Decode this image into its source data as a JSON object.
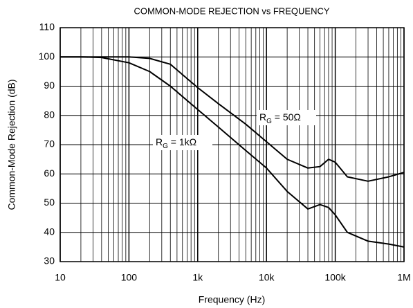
{
  "chart_data": {
    "type": "line",
    "title": "COMMON-MODE REJECTION vs FREQUENCY",
    "xlabel": "Frequency (Hz)",
    "ylabel": "Common-Mode Rejection (dB)",
    "xscale": "log",
    "xlim": [
      10,
      1000000
    ],
    "xticks": [
      10,
      100,
      {
        "value": 1000,
        "label": "1k"
      },
      {
        "value": 10000,
        "label": "10k"
      },
      {
        "value": 100000,
        "label": "100k"
      },
      {
        "value": 1000000,
        "label": "1M"
      }
    ],
    "ylim": [
      30,
      110
    ],
    "yticks": [
      30,
      40,
      50,
      60,
      70,
      80,
      90,
      100,
      110
    ],
    "grid": true,
    "minor_grid": true,
    "x": [
      10,
      20,
      40,
      100,
      200,
      400,
      1000,
      2000,
      5000,
      10000,
      20000,
      40000,
      60000,
      80000,
      100000,
      150000,
      300000,
      600000,
      1000000
    ],
    "series": [
      {
        "label": [
          "R",
          "G",
          " = 50Ω"
        ],
        "color": "#000000",
        "values": [
          100,
          100,
          100,
          100,
          99.5,
          97.5,
          89.5,
          84,
          77,
          71,
          65,
          62,
          62.5,
          65,
          64,
          59,
          57.5,
          59,
          60.5
        ]
      },
      {
        "label": [
          "R",
          "G",
          " = 1kΩ"
        ],
        "color": "#000000",
        "values": [
          100,
          100,
          99.8,
          98,
          95,
          90,
          82,
          76,
          68,
          62,
          54,
          48,
          49.5,
          48.5,
          46,
          40,
          37,
          36,
          35
        ]
      }
    ]
  }
}
